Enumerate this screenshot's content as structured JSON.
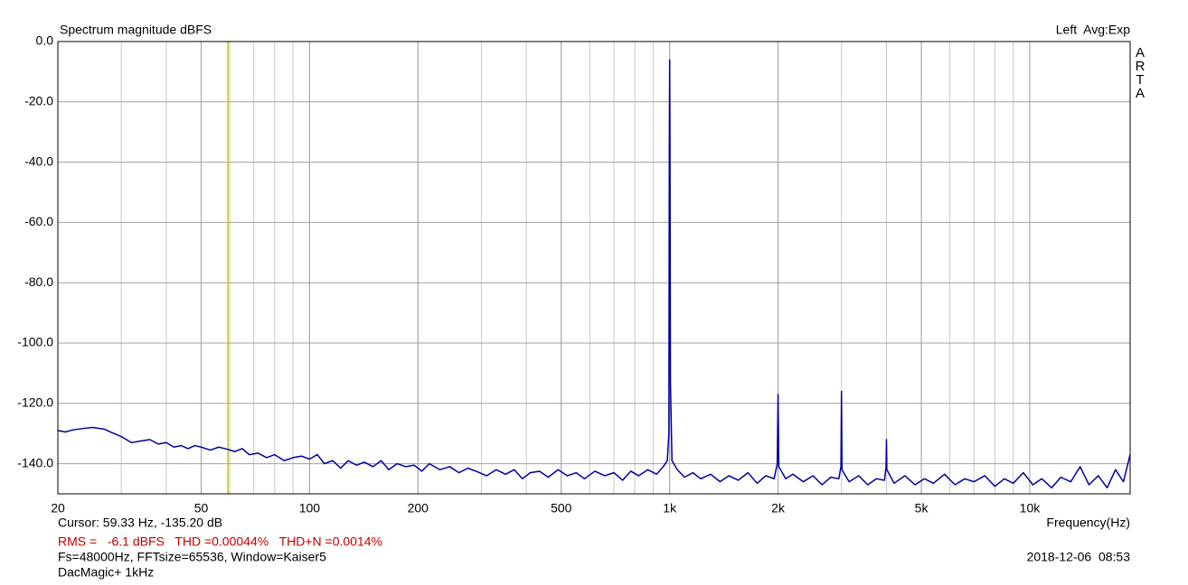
{
  "chart_data": {
    "type": "line",
    "title": "Spectrum magnitude dBFS",
    "channel_label": "Left  Avg:Exp",
    "brand": "ARTA",
    "xlabel": "Frequency(Hz)",
    "log_x": true,
    "grid": true,
    "minor_grid": true,
    "xlim": [
      20,
      19000
    ],
    "ylim": [
      -150,
      0
    ],
    "xticks": [
      20,
      50,
      100,
      200,
      500,
      {
        "value": 1000,
        "label": "1k"
      },
      {
        "value": 2000,
        "label": "2k"
      },
      {
        "value": 5000,
        "label": "5k"
      },
      {
        "value": 10000,
        "label": "10k"
      }
    ],
    "yticks": [
      {
        "value": 0,
        "label": "0.0"
      },
      {
        "value": -20,
        "label": "-20.0"
      },
      {
        "value": -40,
        "label": "-40.0"
      },
      {
        "value": -60,
        "label": "-60.0"
      },
      {
        "value": -80,
        "label": "-80.0"
      },
      {
        "value": -100,
        "label": "-100.0"
      },
      {
        "value": -120,
        "label": "-120.0"
      },
      {
        "value": -140,
        "label": "-140.0"
      }
    ],
    "cursor": {
      "label": "Cursor: 59.33 Hz, -135.20 dB",
      "x": 59.33,
      "color": "#c8c800"
    },
    "measurements": "RMS =   -6.1 dBFS   THD =0.00044%   THD+N =0.0014%",
    "settings": "Fs=48000Hz, FFTsize=65536, Window=Kaiser5",
    "device": "DacMagic+ 1kHz",
    "timestamp": "2018-12-06  08:53",
    "series": [
      {
        "name": "Left",
        "color": "#0000a0",
        "x": [
          20,
          21,
          22,
          23,
          24,
          25,
          26,
          27,
          28,
          30,
          32,
          34,
          36,
          38,
          40,
          42,
          44,
          46,
          48,
          50,
          53,
          56,
          59,
          62,
          65,
          68,
          72,
          76,
          80,
          85,
          90,
          95,
          100,
          105,
          110,
          116,
          122,
          128,
          135,
          142,
          150,
          158,
          166,
          175,
          185,
          195,
          205,
          215,
          230,
          245,
          260,
          275,
          290,
          310,
          330,
          350,
          370,
          390,
          410,
          435,
          460,
          490,
          520,
          550,
          580,
          620,
          660,
          700,
          740,
          780,
          820,
          870,
          920,
          960,
          985,
          995,
          998,
          1000,
          1002,
          1005,
          1015,
          1050,
          1100,
          1160,
          1220,
          1300,
          1380,
          1460,
          1550,
          1650,
          1750,
          1850,
          1950,
          1990,
          2000,
          2010,
          2100,
          2200,
          2350,
          2500,
          2650,
          2800,
          2950,
          2990,
          3000,
          3010,
          3150,
          3350,
          3550,
          3750,
          3950,
          3990,
          4000,
          4010,
          4200,
          4500,
          4800,
          5100,
          5400,
          5800,
          6200,
          6600,
          7000,
          7500,
          8000,
          8500,
          9000,
          9600,
          10200,
          10800,
          11500,
          12200,
          13000,
          13800,
          14600,
          15500,
          16400,
          17300,
          18200,
          19000
        ],
        "values": [
          -129,
          -129.5,
          -128.8,
          -128.5,
          -128.2,
          -128,
          -128.3,
          -128.6,
          -129.5,
          -131,
          -133,
          -132.5,
          -132,
          -133.5,
          -133,
          -134.5,
          -134,
          -135,
          -134,
          -134.5,
          -135.5,
          -134.5,
          -135.2,
          -136,
          -135,
          -137,
          -136.5,
          -138,
          -137,
          -139,
          -138,
          -137.5,
          -138.5,
          -137,
          -140,
          -139,
          -141.5,
          -139,
          -140.5,
          -139.5,
          -141,
          -139,
          -142,
          -140,
          -141,
          -140.5,
          -142.5,
          -140,
          -142,
          -141,
          -143,
          -141.5,
          -142.5,
          -144,
          -142,
          -143.5,
          -142,
          -145,
          -143,
          -142.5,
          -144.5,
          -142,
          -144,
          -143,
          -145,
          -142.5,
          -144,
          -143,
          -145.5,
          -142.5,
          -144,
          -142,
          -143.5,
          -141,
          -139,
          -130,
          -32,
          -6.1,
          -31,
          -113,
          -139,
          -142,
          -144.5,
          -143,
          -145,
          -143.5,
          -146,
          -144,
          -145.5,
          -143,
          -146.5,
          -144,
          -145,
          -140,
          -117,
          -141,
          -145,
          -143.5,
          -146,
          -144,
          -147,
          -144.5,
          -145,
          -141,
          -116,
          -142,
          -146,
          -144,
          -147,
          -145,
          -145.5,
          -141,
          -132,
          -142,
          -146.5,
          -144,
          -147,
          -145,
          -146.5,
          -143.5,
          -147,
          -145,
          -146,
          -144,
          -147.5,
          -145,
          -146.5,
          -143,
          -147,
          -145,
          -148,
          -144.5,
          -146,
          -141,
          -147,
          -144,
          -148,
          -142,
          -146,
          -137
        ]
      }
    ]
  }
}
